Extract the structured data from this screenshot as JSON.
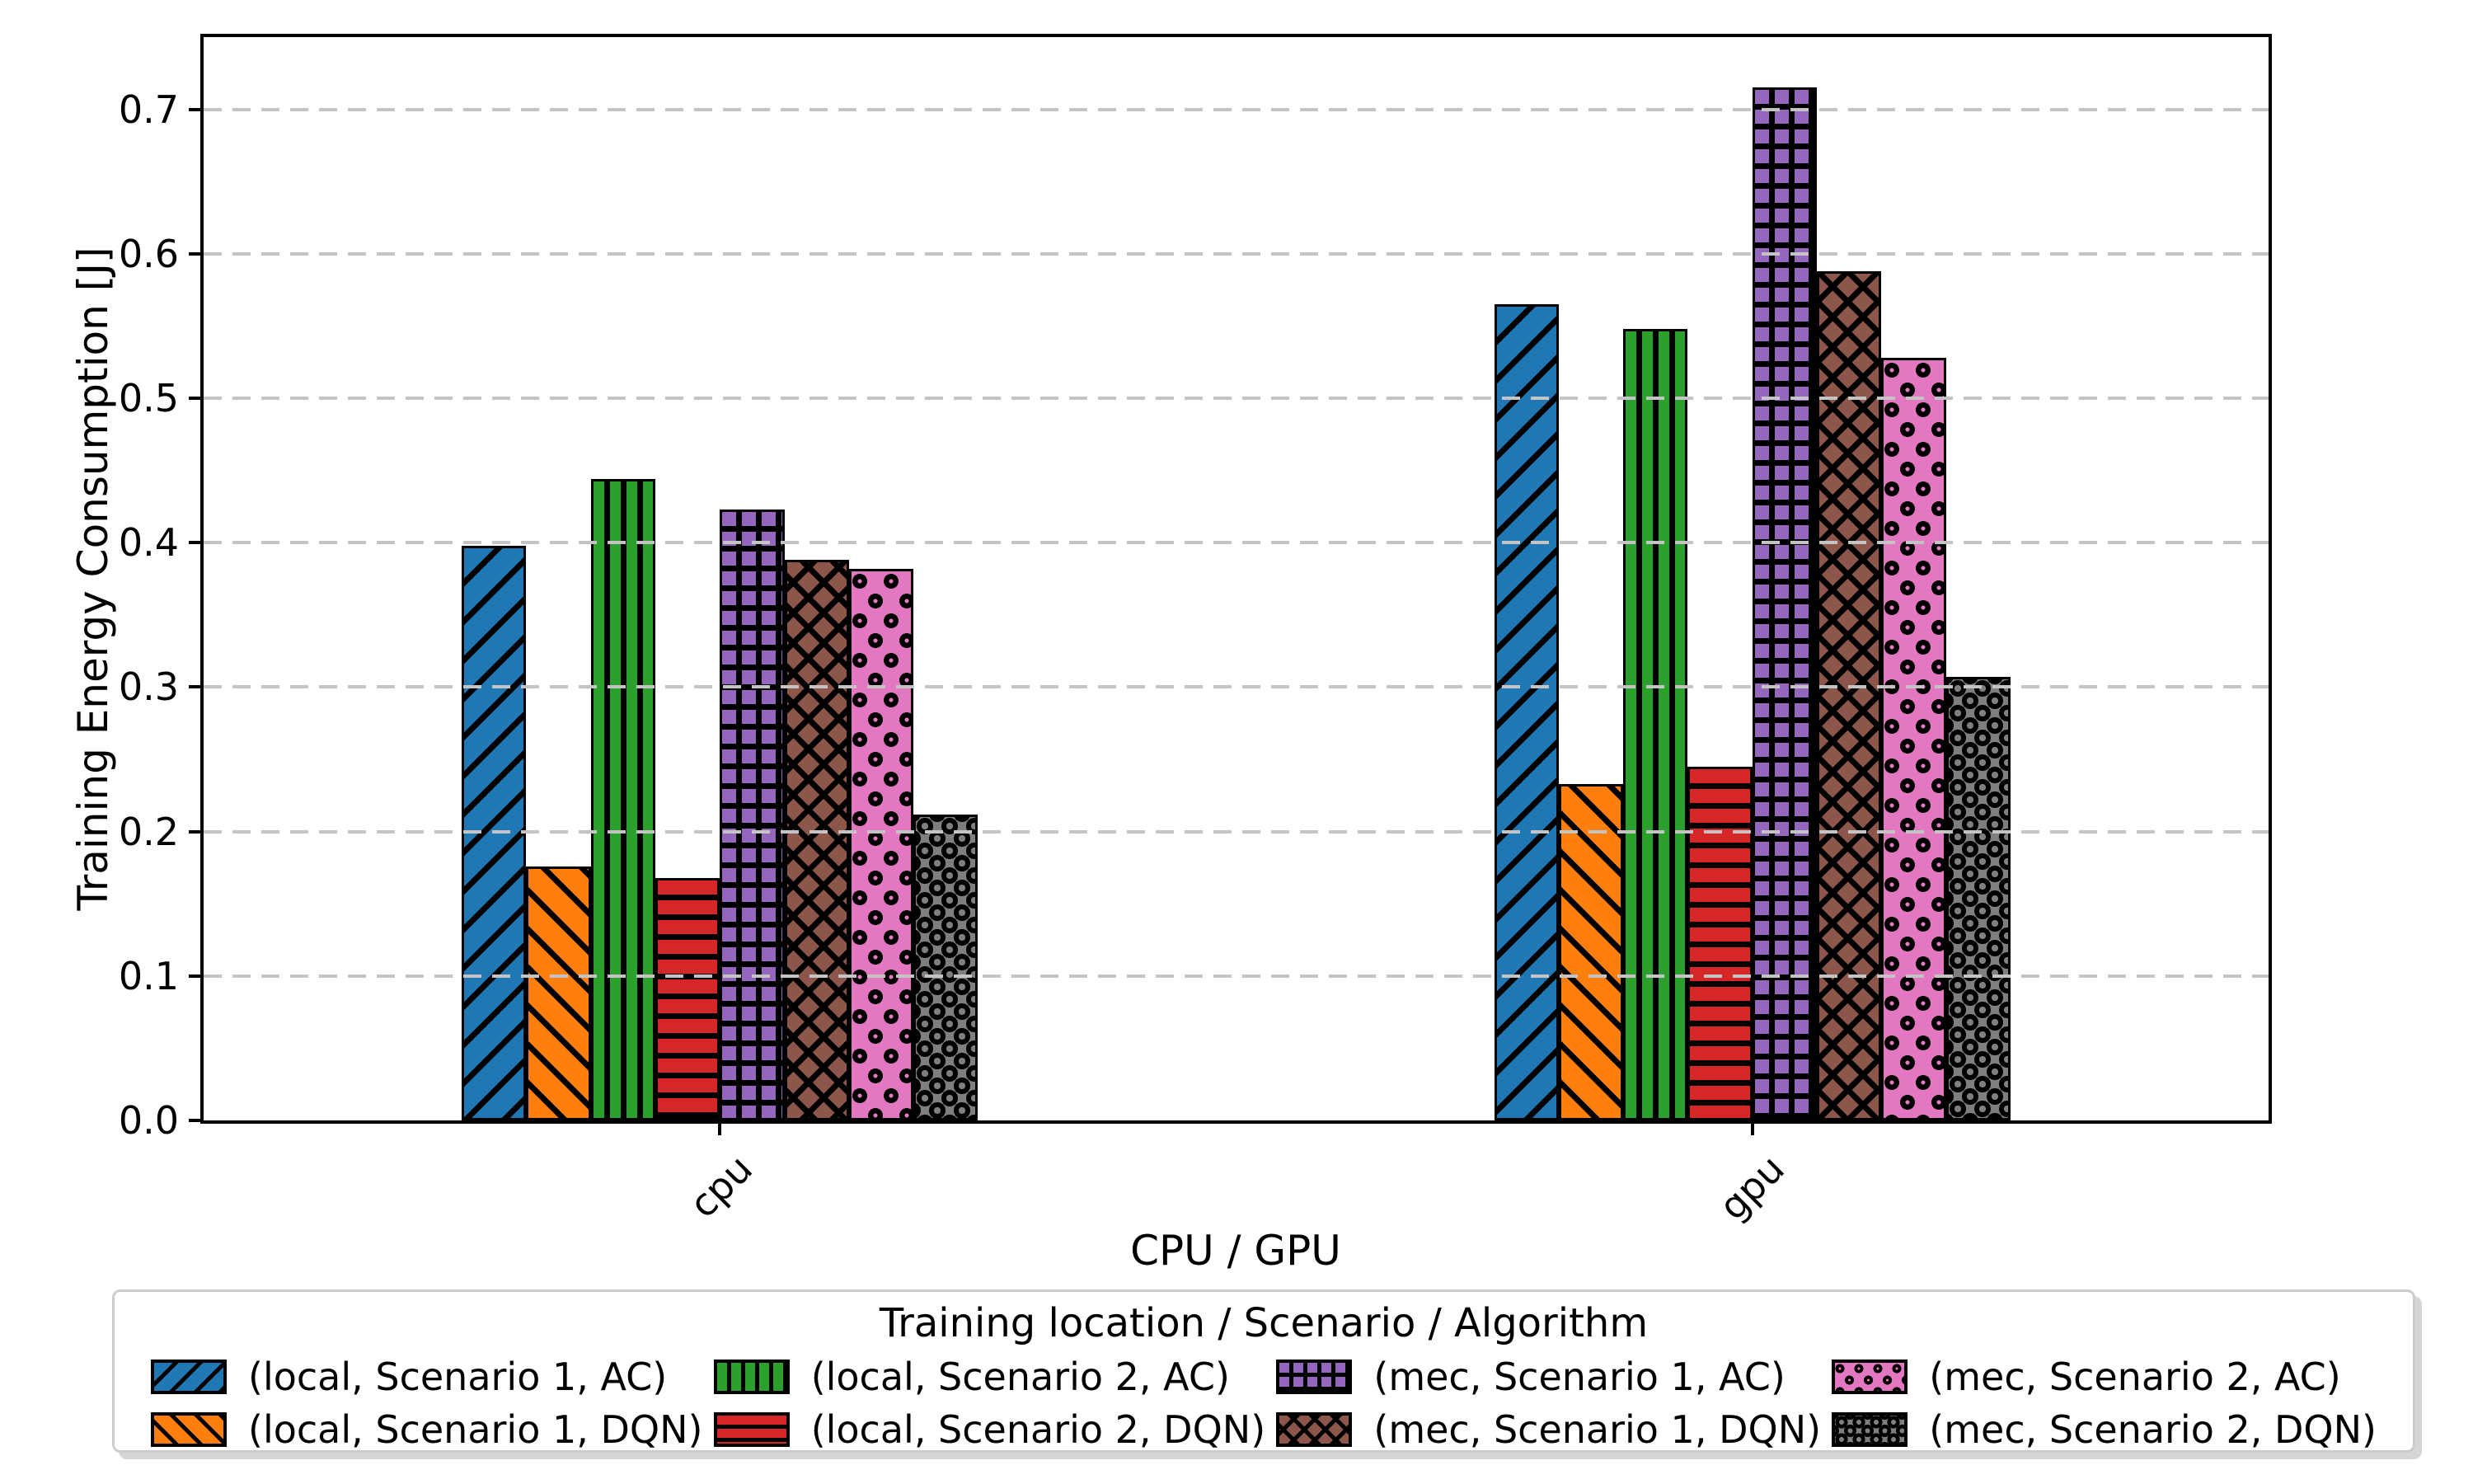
{
  "figure": {
    "background": "#ffffff",
    "grid_color": "#c4c4c4",
    "spine_color": "#000000"
  },
  "chart_data": {
    "type": "bar",
    "title": "",
    "xlabel": "CPU / GPU",
    "ylabel": "Training Energy Consumption [J]",
    "categories": [
      "cpu",
      "gpu"
    ],
    "series": [
      {
        "name": "(local, Scenario 1, AC)",
        "color": "#1f77b4",
        "hatch": "diagonal",
        "values": [
          0.398,
          0.565
        ]
      },
      {
        "name": "(local, Scenario 1, DQN)",
        "color": "#ff7f0e",
        "hatch": "back-diagonal",
        "values": [
          0.176,
          0.233
        ]
      },
      {
        "name": "(local, Scenario 2, AC)",
        "color": "#2ca02c",
        "hatch": "vertical",
        "values": [
          0.444,
          0.548
        ]
      },
      {
        "name": "(local, Scenario 2, DQN)",
        "color": "#d62728",
        "hatch": "horizontal",
        "values": [
          0.168,
          0.245
        ]
      },
      {
        "name": "(mec, Scenario 1, AC)",
        "color": "#9467bd",
        "hatch": "grid",
        "values": [
          0.423,
          0.715
        ]
      },
      {
        "name": "(mec, Scenario 1, DQN)",
        "color": "#8c564b",
        "hatch": "cross",
        "values": [
          0.388,
          0.588
        ]
      },
      {
        "name": "(mec, Scenario 2, AC)",
        "color": "#e377c2",
        "hatch": "dots",
        "values": [
          0.382,
          0.528
        ]
      },
      {
        "name": "(mec, Scenario 2, DQN)",
        "color": "#7f7f7f",
        "hatch": "circles",
        "values": [
          0.212,
          0.307
        ]
      }
    ],
    "ylim": [
      0,
      0.75
    ],
    "yticks": [
      0.0,
      0.1,
      0.2,
      0.3,
      0.4,
      0.5,
      0.6,
      0.7
    ],
    "grid": "horizontal dashed, drawn above bars",
    "legend_title": "Training location / Scenario / Algorithm",
    "legend_position": "bottom",
    "legend_ncol": 4
  }
}
